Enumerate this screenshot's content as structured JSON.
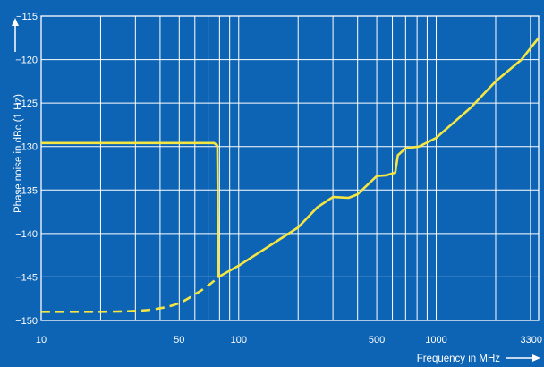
{
  "chart_data": {
    "type": "line",
    "title": "",
    "xlabel": "Frequency in MHz",
    "ylabel": "Phase noise in dBc (1 Hz)",
    "x_scale": "log",
    "xlim": [
      10,
      3300
    ],
    "ylim": [
      -150,
      -115
    ],
    "x_ticks": [
      {
        "value": 10,
        "label": "10"
      },
      {
        "value": 50,
        "label": "50"
      },
      {
        "value": 100,
        "label": "100"
      },
      {
        "value": 500,
        "label": "500"
      },
      {
        "value": 1000,
        "label": "1000"
      },
      {
        "value": 3300,
        "label": "3300"
      }
    ],
    "y_ticks": [
      {
        "value": -115,
        "label": "−115"
      },
      {
        "value": -120,
        "label": "−120"
      },
      {
        "value": -125,
        "label": "−125"
      },
      {
        "value": -130,
        "label": "−130"
      },
      {
        "value": -135,
        "label": "−135"
      },
      {
        "value": -140,
        "label": "−140"
      },
      {
        "value": -145,
        "label": "−145"
      },
      {
        "value": -150,
        "label": "−150"
      }
    ],
    "x_gridlines": [
      10,
      20,
      30,
      40,
      50,
      60,
      70,
      80,
      90,
      100,
      200,
      300,
      400,
      500,
      600,
      700,
      800,
      900,
      1000,
      2000,
      3000,
      3300
    ],
    "grid": true,
    "series": [
      {
        "style": "solid",
        "color": "#f5e642",
        "points": [
          {
            "x": 10,
            "y": -129.6
          },
          {
            "x": 30,
            "y": -129.6
          },
          {
            "x": 60,
            "y": -129.6
          },
          {
            "x": 75,
            "y": -129.6
          },
          {
            "x": 78,
            "y": -129.9
          },
          {
            "x": 79,
            "y": -145.0
          },
          {
            "x": 100,
            "y": -143.7
          },
          {
            "x": 200,
            "y": -139.3
          },
          {
            "x": 250,
            "y": -137.0
          },
          {
            "x": 300,
            "y": -135.8
          },
          {
            "x": 360,
            "y": -135.9
          },
          {
            "x": 400,
            "y": -135.5
          },
          {
            "x": 500,
            "y": -133.4
          },
          {
            "x": 560,
            "y": -133.3
          },
          {
            "x": 620,
            "y": -133.0
          },
          {
            "x": 640,
            "y": -131.0
          },
          {
            "x": 700,
            "y": -130.2
          },
          {
            "x": 820,
            "y": -130.0
          },
          {
            "x": 1000,
            "y": -129.0
          },
          {
            "x": 1500,
            "y": -125.5
          },
          {
            "x": 2000,
            "y": -122.5
          },
          {
            "x": 2700,
            "y": -120.0
          },
          {
            "x": 3300,
            "y": -117.5
          }
        ]
      },
      {
        "style": "dashed",
        "color": "#f5e642",
        "points": [
          {
            "x": 10,
            "y": -149.0
          },
          {
            "x": 20,
            "y": -149.0
          },
          {
            "x": 30,
            "y": -148.9
          },
          {
            "x": 40,
            "y": -148.6
          },
          {
            "x": 50,
            "y": -148.0
          },
          {
            "x": 60,
            "y": -147.0
          },
          {
            "x": 70,
            "y": -146.0
          },
          {
            "x": 79,
            "y": -145.0
          }
        ]
      }
    ]
  },
  "colors": {
    "background": "#0e64b4",
    "plot_border": "#ffffff",
    "grid": "#ffffff",
    "curve": "#f5e642"
  }
}
